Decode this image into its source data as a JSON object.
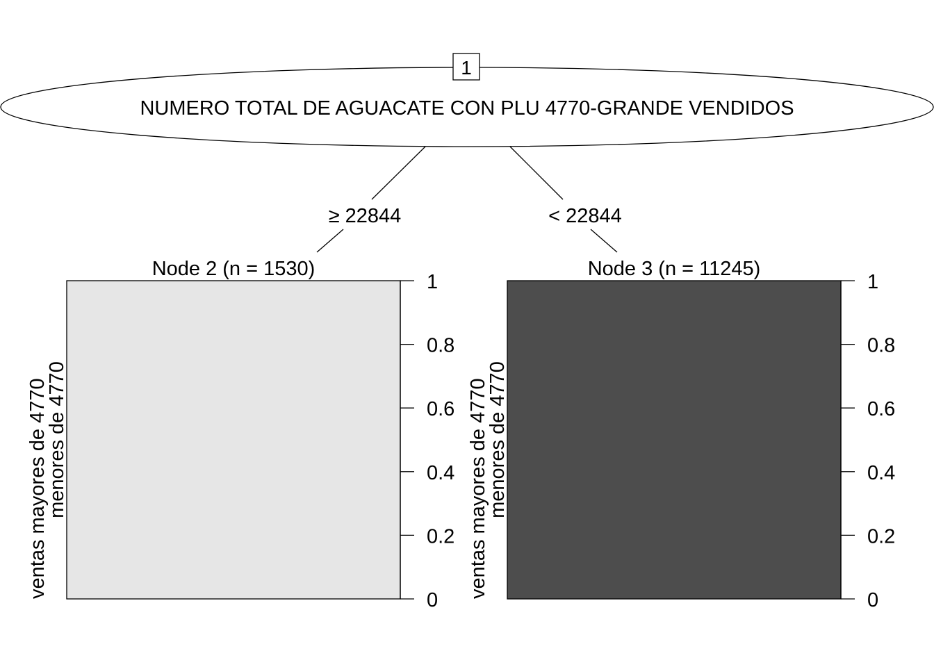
{
  "root": {
    "id": "1",
    "label": "NUMERO TOTAL DE AGUACATE CON PLU 4770-GRANDE VENDIDOS"
  },
  "edges": [
    {
      "label": "≥ 22844"
    },
    {
      "label": "< 22844"
    }
  ],
  "nodes": [
    {
      "title": "Node 2 (n = 1530)",
      "fill": "#e6e6e6",
      "level_labels": [
        "ventas mayores de 4770",
        "menores de 4770"
      ],
      "proportion": 1
    },
    {
      "title": "Node 3 (n = 11245)",
      "fill": "#4d4d4d",
      "level_labels": [
        "ventas mayores de 4770",
        "menores de 4770"
      ],
      "proportion": 1
    }
  ],
  "axis_ticks": [
    "0",
    "0.2",
    "0.4",
    "0.6",
    "0.8",
    "1"
  ]
}
